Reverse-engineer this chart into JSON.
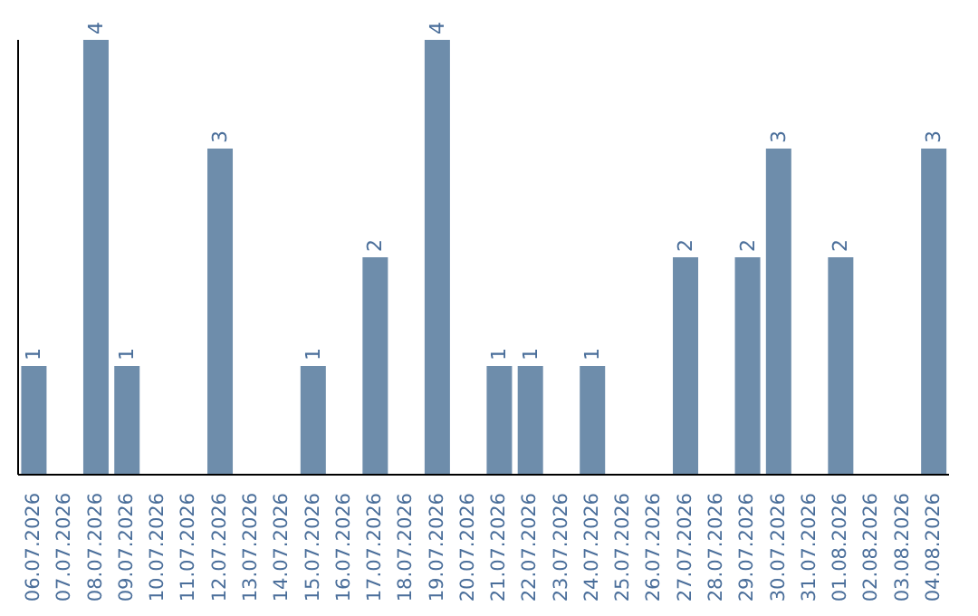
{
  "chart_data": {
    "type": "bar",
    "categories": [
      "06.07.2026",
      "07.07.2026",
      "08.07.2026",
      "09.07.2026",
      "10.07.2026",
      "11.07.2026",
      "12.07.2026",
      "13.07.2026",
      "14.07.2026",
      "15.07.2026",
      "16.07.2026",
      "17.07.2026",
      "18.07.2026",
      "19.07.2026",
      "20.07.2026",
      "21.07.2026",
      "22.07.2026",
      "23.07.2026",
      "24.07.2026",
      "25.07.2026",
      "26.07.2026",
      "27.07.2026",
      "28.07.2026",
      "29.07.2026",
      "30.07.2026",
      "31.07.2026",
      "01.08.2026",
      "02.08.2026",
      "03.08.2026",
      "04.08.2026"
    ],
    "values": [
      1,
      0,
      4,
      1,
      0,
      0,
      3,
      0,
      0,
      1,
      0,
      2,
      0,
      4,
      0,
      1,
      1,
      0,
      1,
      0,
      0,
      2,
      0,
      2,
      3,
      0,
      2,
      0,
      0,
      3
    ],
    "value_labels": [
      "1",
      null,
      "4",
      "1",
      null,
      null,
      "3",
      null,
      null,
      "1",
      null,
      "2",
      null,
      "4",
      null,
      "1",
      "1",
      null,
      "1",
      null,
      null,
      "2",
      null,
      "2",
      "3",
      null,
      "2",
      null,
      null,
      "3"
    ],
    "color": "#6e8dab",
    "grid": false,
    "legend": false
  }
}
